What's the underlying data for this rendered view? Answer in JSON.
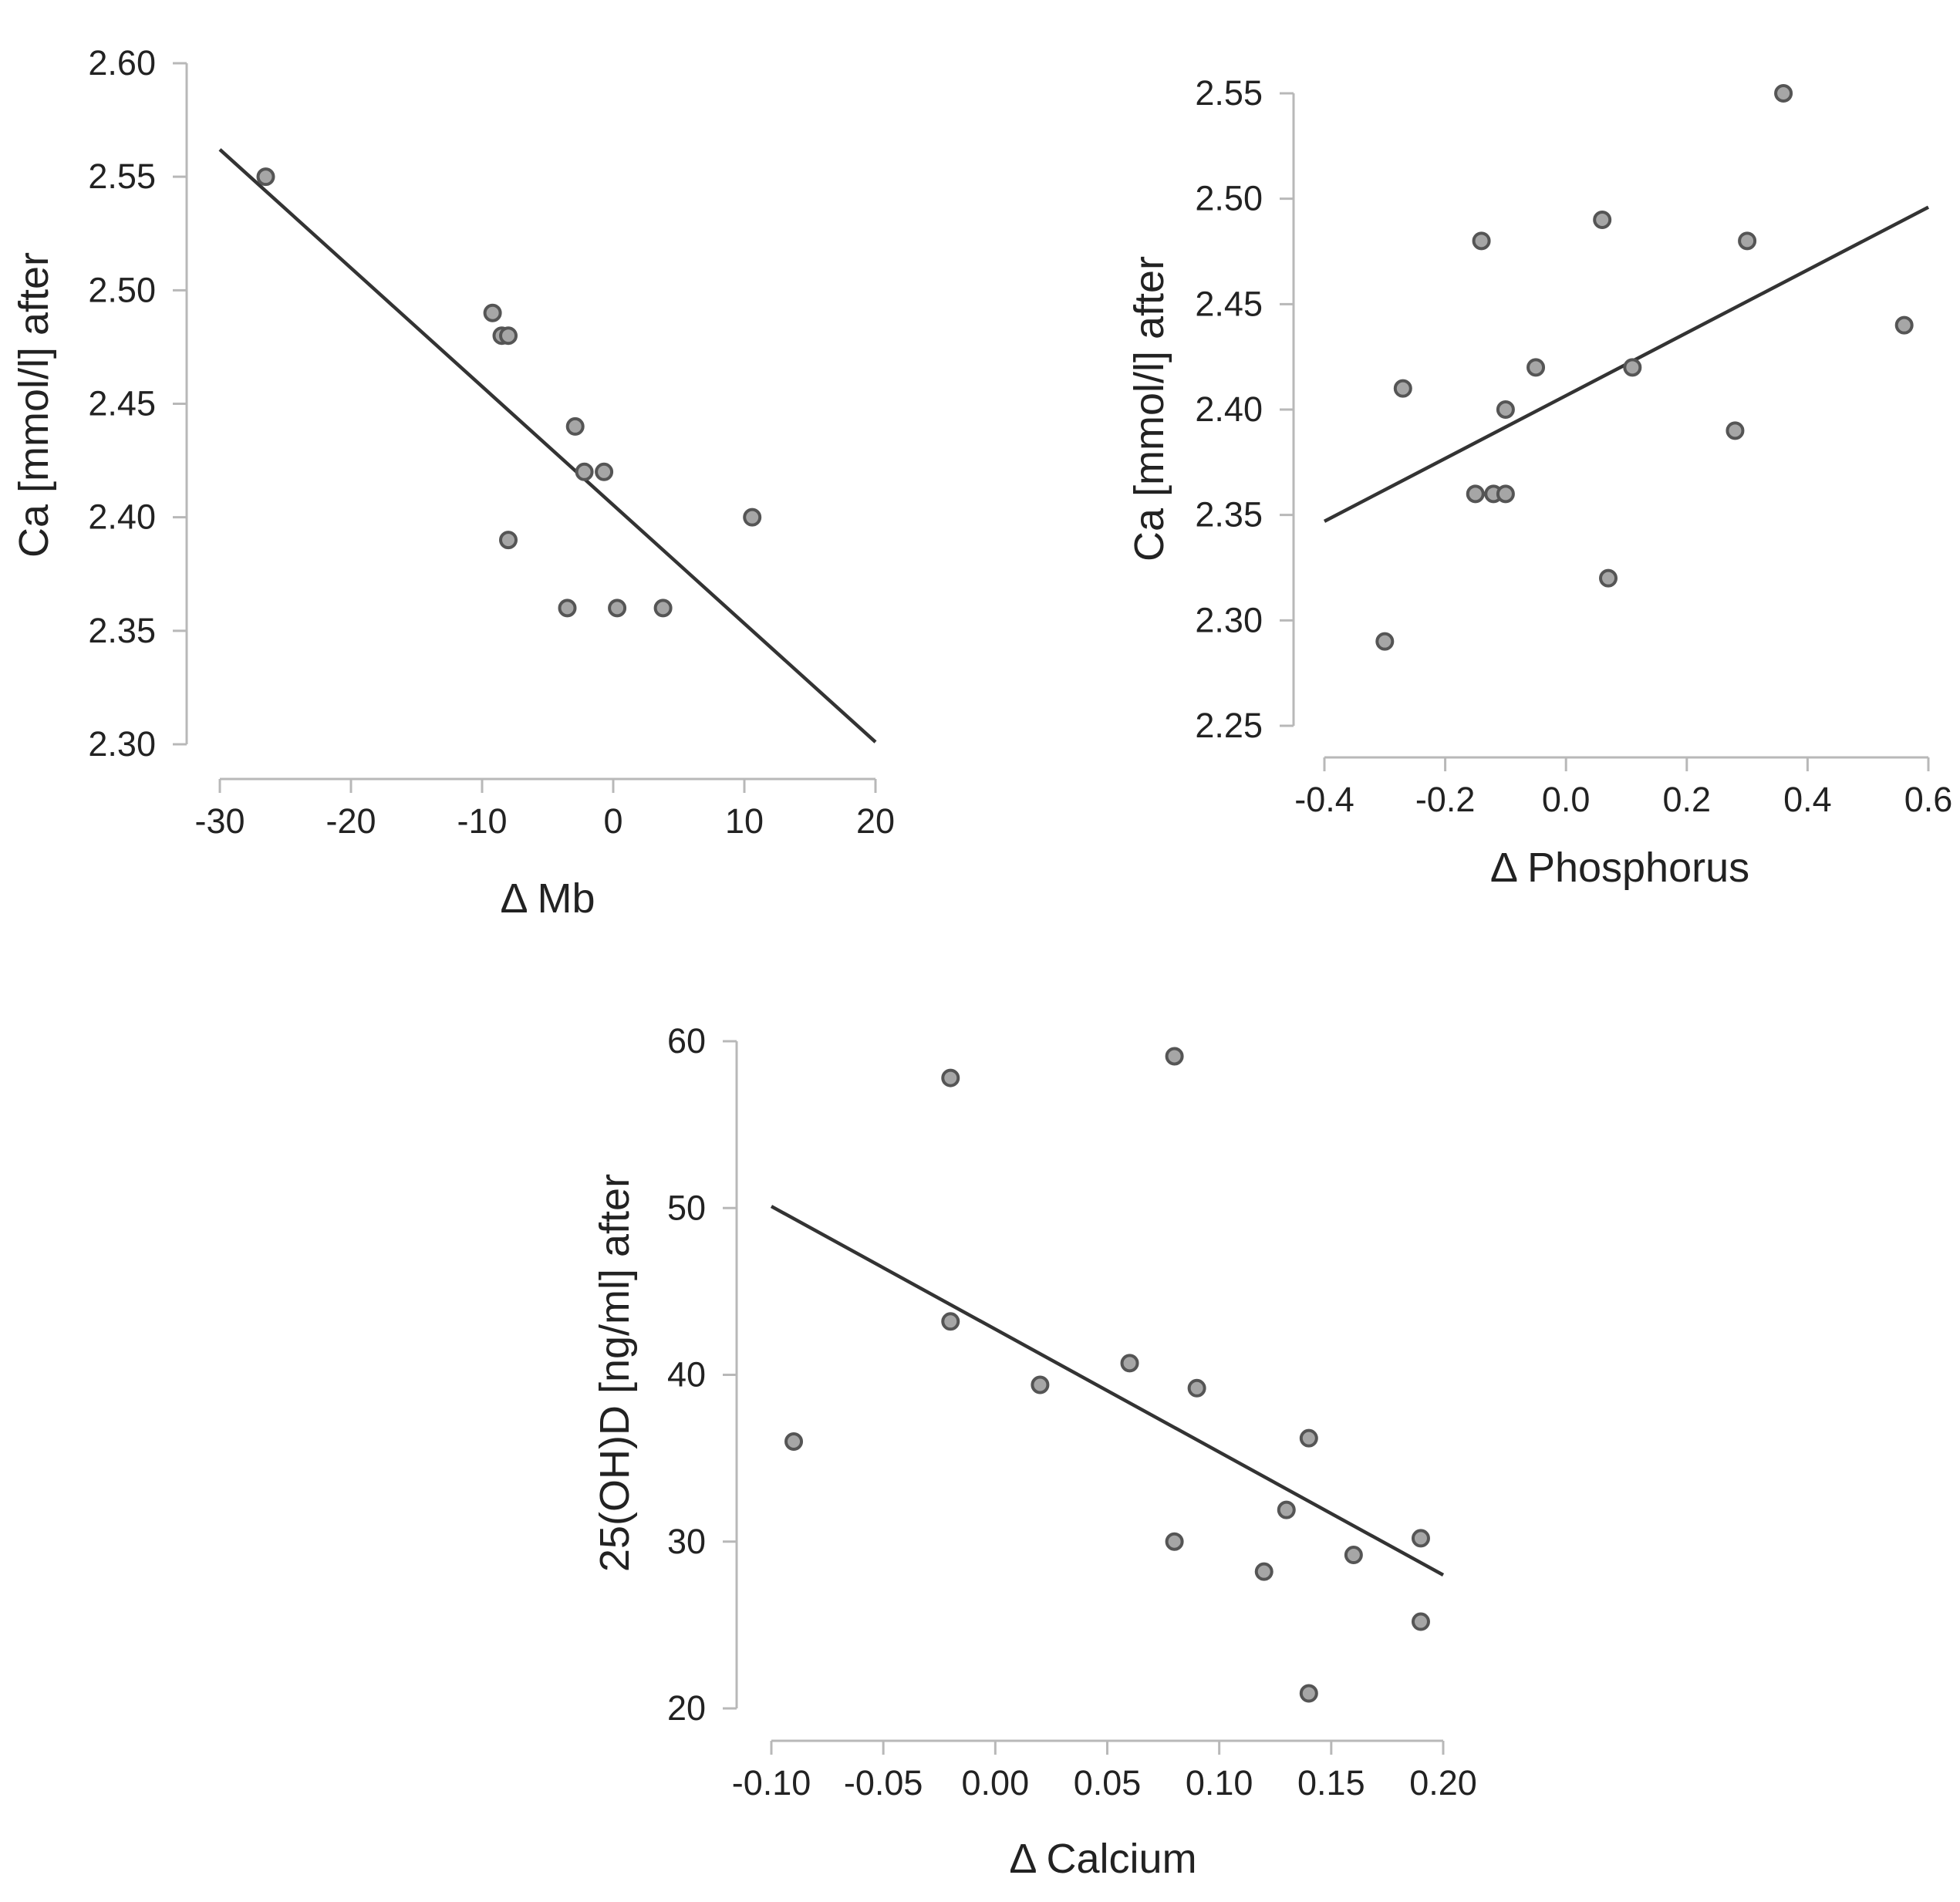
{
  "chart_data": [
    {
      "type": "scatter",
      "id": "mb",
      "title": "",
      "xlabel": "Δ Mb",
      "ylabel": "Ca [mmol/l] after",
      "xlim": [
        -30,
        20
      ],
      "ylim": [
        2.3,
        2.6
      ],
      "x_ticks": [
        -30,
        -20,
        -10,
        0,
        10,
        20
      ],
      "y_ticks": [
        2.3,
        2.35,
        2.4,
        2.45,
        2.5,
        2.55,
        2.6
      ],
      "x_tick_labels": [
        "-30",
        "-20",
        "-10",
        "0",
        "10",
        "20"
      ],
      "y_tick_labels": [
        "2.30",
        "2.35",
        "2.40",
        "2.45",
        "2.50",
        "2.55",
        "2.60"
      ],
      "grid": false,
      "points": [
        {
          "x": -26.5,
          "y": 2.55
        },
        {
          "x": -9.2,
          "y": 2.49
        },
        {
          "x": -8.5,
          "y": 2.48
        },
        {
          "x": -8.0,
          "y": 2.48
        },
        {
          "x": -2.9,
          "y": 2.44
        },
        {
          "x": -2.2,
          "y": 2.42
        },
        {
          "x": -0.7,
          "y": 2.42
        },
        {
          "x": -8.0,
          "y": 2.39
        },
        {
          "x": 10.6,
          "y": 2.4
        },
        {
          "x": -3.5,
          "y": 2.36
        },
        {
          "x": 0.3,
          "y": 2.36
        },
        {
          "x": 3.8,
          "y": 2.36
        }
      ],
      "fit_line": [
        {
          "x": -30,
          "y": 2.562
        },
        {
          "x": 20,
          "y": 2.301
        }
      ]
    },
    {
      "type": "scatter",
      "id": "phosphorus",
      "title": "",
      "xlabel": "Δ Phosphorus",
      "ylabel": "Ca [mmol/l] after",
      "xlim": [
        -0.4,
        0.6
      ],
      "ylim": [
        2.25,
        2.55
      ],
      "x_ticks": [
        -0.4,
        -0.2,
        0.0,
        0.2,
        0.4,
        0.6
      ],
      "y_ticks": [
        2.25,
        2.3,
        2.35,
        2.4,
        2.45,
        2.5,
        2.55
      ],
      "x_tick_labels": [
        "-0.4",
        "-0.2",
        "0.0",
        "0.2",
        "0.4",
        "0.6"
      ],
      "y_tick_labels": [
        "2.25",
        "2.30",
        "2.35",
        "2.40",
        "2.45",
        "2.50",
        "2.55"
      ],
      "grid": false,
      "points": [
        {
          "x": 0.36,
          "y": 2.55
        },
        {
          "x": 0.06,
          "y": 2.49
        },
        {
          "x": -0.14,
          "y": 2.48
        },
        {
          "x": 0.3,
          "y": 2.48
        },
        {
          "x": 0.56,
          "y": 2.44
        },
        {
          "x": -0.05,
          "y": 2.42
        },
        {
          "x": 0.11,
          "y": 2.42
        },
        {
          "x": -0.27,
          "y": 2.41
        },
        {
          "x": -0.1,
          "y": 2.4
        },
        {
          "x": 0.28,
          "y": 2.39
        },
        {
          "x": -0.15,
          "y": 2.36
        },
        {
          "x": -0.12,
          "y": 2.36
        },
        {
          "x": -0.1,
          "y": 2.36
        },
        {
          "x": 0.07,
          "y": 2.32
        },
        {
          "x": -0.3,
          "y": 2.29
        }
      ],
      "fit_line": [
        {
          "x": -0.4,
          "y": 2.347
        },
        {
          "x": 0.6,
          "y": 2.496
        }
      ]
    },
    {
      "type": "scatter",
      "id": "calcium",
      "title": "",
      "xlabel": "Δ Calcium",
      "ylabel": "25(OH)D [ng/ml] after",
      "xlim": [
        -0.1,
        0.2
      ],
      "ylim": [
        20,
        60
      ],
      "x_ticks": [
        -0.1,
        -0.05,
        0.0,
        0.05,
        0.1,
        0.15,
        0.2
      ],
      "y_ticks": [
        20,
        30,
        40,
        50,
        60
      ],
      "x_tick_labels": [
        "-0.10",
        "-0.05",
        "0.00",
        "0.05",
        "0.10",
        "0.15",
        "0.20"
      ],
      "y_tick_labels": [
        "20",
        "30",
        "40",
        "50",
        "60"
      ],
      "grid": false,
      "points": [
        {
          "x": -0.09,
          "y": 36.0
        },
        {
          "x": -0.02,
          "y": 57.8
        },
        {
          "x": -0.02,
          "y": 43.2
        },
        {
          "x": 0.02,
          "y": 39.4
        },
        {
          "x": 0.06,
          "y": 40.7
        },
        {
          "x": 0.08,
          "y": 59.1
        },
        {
          "x": 0.08,
          "y": 30.0
        },
        {
          "x": 0.09,
          "y": 39.2
        },
        {
          "x": 0.12,
          "y": 28.2
        },
        {
          "x": 0.13,
          "y": 31.9
        },
        {
          "x": 0.14,
          "y": 36.2
        },
        {
          "x": 0.14,
          "y": 20.9
        },
        {
          "x": 0.16,
          "y": 29.2
        },
        {
          "x": 0.19,
          "y": 30.2
        },
        {
          "x": 0.19,
          "y": 25.2
        }
      ],
      "fit_line": [
        {
          "x": -0.1,
          "y": 50.1
        },
        {
          "x": 0.2,
          "y": 28.0
        }
      ]
    }
  ]
}
